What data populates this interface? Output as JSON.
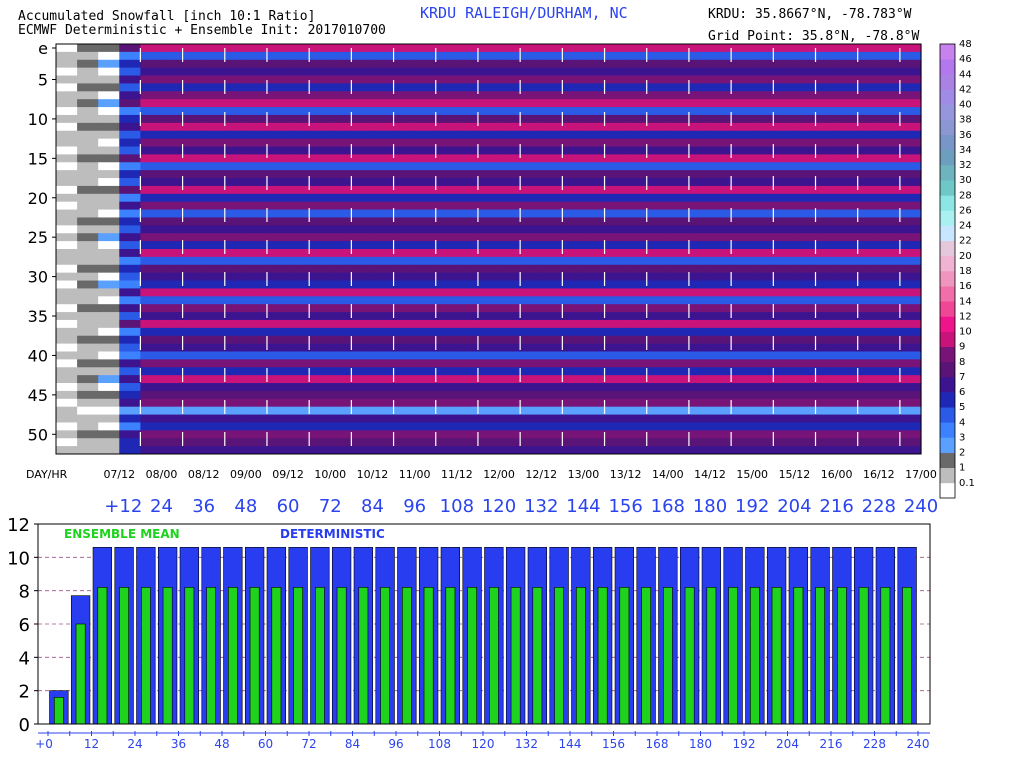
{
  "header": {
    "title_line1": "Accumulated Snowfall [inch 10:1 Ratio]",
    "title_line2": "ECMWF Deterministic + Ensemble Init: 2017010700",
    "station": "KRDU RALEIGH/DURHAM, NC",
    "station_coords": "KRDU: 35.8667°N, -78.783°W",
    "grid_point": "Grid Point: 35.8°N, -78.8°W"
  },
  "chart_data": [
    {
      "type": "heatmap",
      "title": "Accumulated Snowfall [inch 10:1 Ratio]",
      "y_tick_labels": [
        "e",
        "5",
        "10",
        "15",
        "20",
        "25",
        "30",
        "35",
        "40",
        "45",
        "50"
      ],
      "y_rows": 52,
      "x_row_label": "DAY/HR",
      "x_day_labels": [
        "07/12",
        "08/00",
        "08/12",
        "09/00",
        "09/12",
        "10/00",
        "10/12",
        "11/00",
        "11/12",
        "12/00",
        "12/12",
        "13/00",
        "13/12",
        "14/00",
        "14/12",
        "15/00",
        "15/12",
        "16/00",
        "16/12",
        "17/00"
      ],
      "x_hour_labels": [
        "+12",
        "24",
        "36",
        "48",
        "60",
        "72",
        "84",
        "96",
        "108",
        "120",
        "132",
        "144",
        "156",
        "168",
        "180",
        "192",
        "204",
        "216",
        "228",
        "240"
      ],
      "forecast_hours": [
        0,
        6,
        12,
        18,
        24,
        30,
        36,
        42,
        48,
        54,
        60,
        66,
        72,
        78,
        84,
        90,
        96,
        102,
        108,
        114,
        120,
        126,
        132,
        138,
        144,
        150,
        156,
        162,
        168,
        174,
        180,
        186,
        192,
        198,
        204,
        210,
        216,
        222,
        228,
        234,
        240
      ],
      "colorbar": {
        "levels": [
          "0.1",
          "1",
          "2",
          "3",
          "4",
          "5",
          "6",
          "7",
          "8",
          "9",
          "10",
          "12",
          "14",
          "16",
          "18",
          "20",
          "22",
          "24",
          "26",
          "28",
          "30",
          "32",
          "34",
          "36",
          "38",
          "40",
          "42",
          "44",
          "46",
          "48"
        ],
        "colors": [
          "#ffffff",
          "#bdbdbd",
          "#696969",
          "#5aa0ff",
          "#3c82ff",
          "#2a5ae6",
          "#1e28b4",
          "#3c1490",
          "#5a1478",
          "#781478",
          "#c8147a",
          "#f0148c",
          "#f04696",
          "#f06eaa",
          "#f096be",
          "#f0b4d2",
          "#e6c8dc",
          "#c8e6ff",
          "#aaf0f0",
          "#8ce6e6",
          "#6ec8c8",
          "#6eb4be",
          "#6e9ebe",
          "#7896c8",
          "#8c96d2",
          "#9696dc",
          "#a08ce6",
          "#aa82e6",
          "#b478ee",
          "#c882f0"
        ]
      },
      "member_final_snowfall_in": [
        10.6,
        5.2,
        8.4,
        7.3,
        9.6,
        6.5,
        9.2,
        10.8,
        5.9,
        8.7,
        10.3,
        6.8,
        9.0,
        7.6,
        10.4,
        5.4,
        8.9,
        7.1,
        10.6,
        6.3,
        9.4,
        5.7,
        8.6,
        7.2,
        9.9,
        6.6,
        10.2,
        5.5,
        8.2,
        7.4,
        6.2,
        10.1,
        5.8,
        9.3,
        7.0,
        10.5,
        6.1,
        8.8,
        7.7,
        5.6,
        9.7,
        6.9,
        10.0,
        7.5,
        8.5,
        9.5,
        3.9,
        7.8,
        6.4,
        9.8,
        8.1,
        7.9
      ],
      "member_12h_snowfall_in": [
        2.2,
        0.4,
        3.1,
        0.9,
        1.5,
        2.0,
        0.6,
        3.4,
        0.8,
        1.9,
        2.4,
        1.1,
        0.5,
        1.7,
        2.6,
        0.9,
        1.3,
        0.4,
        2.9,
        1.0,
        1.6,
        0.7,
        2.1,
        1.2,
        3.0,
        0.6,
        1.8,
        1.0,
        2.3,
        0.5,
        3.2,
        1.4,
        0.8,
        2.5,
        1.1,
        1.9,
        0.7,
        2.8,
        1.2,
        0.6,
        2.0,
        1.5,
        3.3,
        0.9,
        2.7,
        1.6,
        0.3,
        1.3,
        0.8,
        2.4,
        1.0,
        1.7
      ]
    },
    {
      "type": "bar",
      "series": [
        {
          "name": "ENSEMBLE MEAN",
          "color": "#1ed21e",
          "values": [
            0,
            1.6,
            6.0,
            8.2,
            8.2,
            8.2,
            8.2,
            8.2,
            8.2,
            8.2,
            8.2,
            8.2,
            8.2,
            8.2,
            8.2,
            8.2,
            8.2,
            8.2,
            8.2,
            8.2,
            8.2,
            8.2,
            8.2,
            8.2,
            8.2,
            8.2,
            8.2,
            8.2,
            8.2,
            8.2,
            8.2,
            8.2,
            8.2,
            8.2,
            8.2,
            8.2,
            8.2,
            8.2,
            8.2,
            8.2,
            8.2
          ]
        },
        {
          "name": "DETERMINISTIC",
          "color": "#283cf0",
          "values": [
            0,
            2.0,
            7.7,
            10.6,
            10.6,
            10.6,
            10.6,
            10.6,
            10.6,
            10.6,
            10.6,
            10.6,
            10.6,
            10.6,
            10.6,
            10.6,
            10.6,
            10.6,
            10.6,
            10.6,
            10.6,
            10.6,
            10.6,
            10.6,
            10.6,
            10.6,
            10.6,
            10.6,
            10.6,
            10.6,
            10.6,
            10.6,
            10.6,
            10.6,
            10.6,
            10.6,
            10.6,
            10.6,
            10.6,
            10.6,
            10.6
          ]
        }
      ],
      "x": [
        0,
        6,
        12,
        18,
        24,
        30,
        36,
        42,
        48,
        54,
        60,
        66,
        72,
        78,
        84,
        90,
        96,
        102,
        108,
        114,
        120,
        126,
        132,
        138,
        144,
        150,
        156,
        162,
        168,
        174,
        180,
        186,
        192,
        198,
        204,
        210,
        216,
        222,
        228,
        234,
        240
      ],
      "x_tick_labels": [
        "+0",
        "12",
        "24",
        "36",
        "48",
        "60",
        "72",
        "84",
        "96",
        "108",
        "120",
        "132",
        "144",
        "156",
        "168",
        "180",
        "192",
        "204",
        "216",
        "228",
        "240"
      ],
      "y_tick_labels": [
        "0",
        "2",
        "4",
        "6",
        "8",
        "10",
        "12"
      ],
      "ylim": [
        0,
        12
      ],
      "grid": true
    }
  ]
}
